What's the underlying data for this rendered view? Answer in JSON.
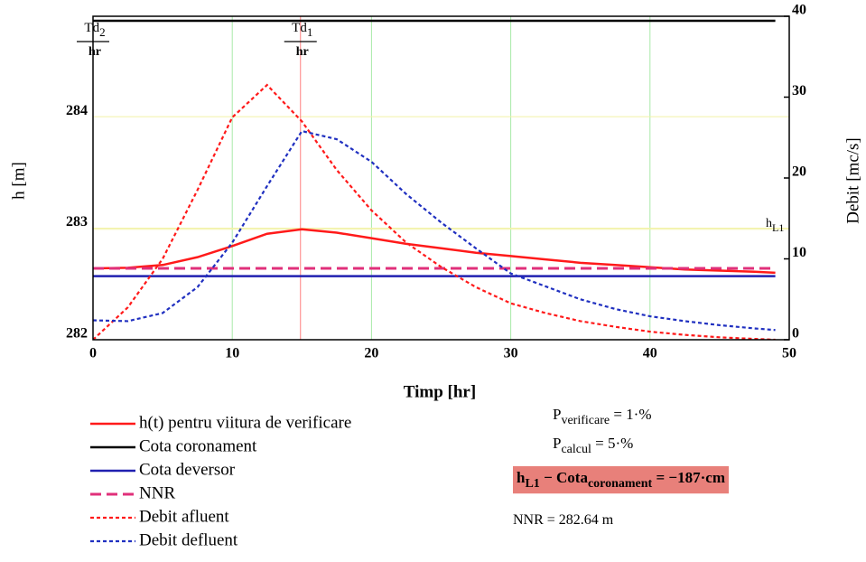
{
  "chart_data": {
    "type": "line",
    "xlabel": "Timp [hr]",
    "ylabel": "h [m]",
    "y2label": "Debit [mc/s]",
    "x": [
      0,
      2.5,
      5,
      7.5,
      10,
      12.5,
      15,
      17.5,
      20,
      22.5,
      25,
      27.5,
      30,
      32.5,
      35,
      37.5,
      40,
      42.5,
      45,
      47.5,
      49
    ],
    "xlim": [
      0,
      50
    ],
    "xticks": [
      0,
      10,
      20,
      30,
      40,
      50
    ],
    "ylim": [
      282,
      284.9
    ],
    "yticks": [
      282,
      283,
      284
    ],
    "y2lim": [
      0,
      40
    ],
    "y2ticks": [
      0,
      10,
      20,
      30,
      40
    ],
    "grid": true,
    "xgrid_color": "#a8eaa8",
    "ygrid_color": "#f2f2a8",
    "series": [
      {
        "name": "h(t) pentru viitura de verificare",
        "color": "#ff1a1a",
        "dash": "solid",
        "axis": "y",
        "values": [
          282.64,
          282.645,
          282.67,
          282.74,
          282.84,
          282.95,
          282.99,
          282.96,
          282.91,
          282.86,
          282.82,
          282.78,
          282.75,
          282.72,
          282.69,
          282.67,
          282.65,
          282.63,
          282.62,
          282.61,
          282.6
        ]
      },
      {
        "name": "Cota coronament",
        "color": "#000000",
        "dash": "solid",
        "axis": "y",
        "values": [
          284.86,
          284.86,
          284.86,
          284.86,
          284.86,
          284.86,
          284.86,
          284.86,
          284.86,
          284.86,
          284.86,
          284.86,
          284.86,
          284.86,
          284.86,
          284.86,
          284.86,
          284.86,
          284.86,
          284.86,
          284.86
        ]
      },
      {
        "name": "Cota deversor",
        "color": "#2020b0",
        "dash": "solid",
        "axis": "y",
        "values": [
          282.57,
          282.57,
          282.57,
          282.57,
          282.57,
          282.57,
          282.57,
          282.57,
          282.57,
          282.57,
          282.57,
          282.57,
          282.57,
          282.57,
          282.57,
          282.57,
          282.57,
          282.57,
          282.57,
          282.57,
          282.57
        ]
      },
      {
        "name": "NNR",
        "color": "#e0307a",
        "dash": "dashed",
        "axis": "y",
        "values": [
          282.64,
          282.64,
          282.64,
          282.64,
          282.64,
          282.64,
          282.64,
          282.64,
          282.64,
          282.64,
          282.64,
          282.64,
          282.64,
          282.64,
          282.64,
          282.64,
          282.64,
          282.64,
          282.64,
          282.64,
          282.64
        ]
      },
      {
        "name": "Debit afluent",
        "color": "#ff1a1a",
        "dash": "dotted",
        "axis": "y2",
        "values": [
          0,
          4,
          10,
          18.5,
          27.5,
          31.5,
          27,
          21,
          16,
          12,
          9,
          6.5,
          4.5,
          3.3,
          2.3,
          1.6,
          1,
          0.6,
          0.3,
          0.1,
          0
        ]
      },
      {
        "name": "Debit defluent",
        "color": "#2030c0",
        "dash": "dotted",
        "axis": "y2",
        "values": [
          2.4,
          2.3,
          3.3,
          6.5,
          12,
          19,
          25.8,
          24.8,
          22,
          18,
          14.5,
          11.3,
          8.2,
          6.6,
          5,
          3.8,
          2.9,
          2.3,
          1.8,
          1.4,
          1.2
        ]
      }
    ],
    "x_markers": [
      {
        "value": 0,
        "label": "Td",
        "subscript": "2",
        "unit": "hr",
        "color": "#ff8080"
      },
      {
        "value": 14.9,
        "label": "Td",
        "subscript": "1",
        "unit": "hr",
        "color": "#ff8080"
      }
    ],
    "y_markers": [
      {
        "value": 282.99,
        "label": "h",
        "subscript": "L1",
        "color": "#f2f2a8"
      }
    ],
    "annotations": [
      {
        "parts": [
          {
            "text": "P"
          },
          {
            "text": "verificare",
            "sub": true
          },
          {
            "text": " = 1·%"
          }
        ]
      },
      {
        "parts": [
          {
            "text": "P"
          },
          {
            "text": "calcul",
            "sub": true
          },
          {
            "text": " = 5·%"
          }
        ]
      },
      {
        "highlight": "#e8807a",
        "parts": [
          {
            "text": "h"
          },
          {
            "text": "L1",
            "sub": true
          },
          {
            "text": " − Cota"
          },
          {
            "text": "coronament",
            "sub": true
          },
          {
            "text": " = −187·cm"
          }
        ]
      },
      {
        "parts": [
          {
            "text": "NNR = 282.64 m"
          }
        ]
      }
    ]
  }
}
